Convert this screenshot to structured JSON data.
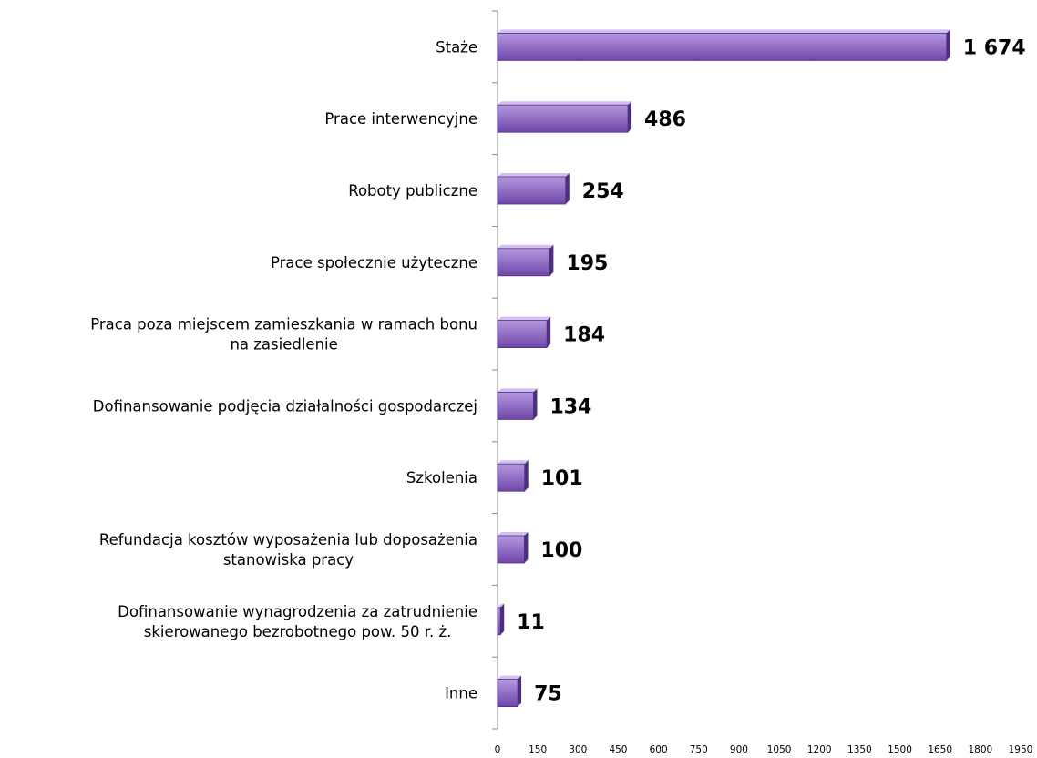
{
  "chart_data": {
    "type": "bar",
    "orientation": "horizontal",
    "categories": [
      "Staże",
      "Prace interwencyjne",
      "Roboty publiczne",
      "Prace społecznie użyteczne",
      "Praca poza miejscem zamieszkania w ramach bonu na zasiedlenie",
      "Dofinansowanie podjęcia działalności gospodarczej",
      "Szkolenia",
      "Refundacja kosztów wyposażenia lub doposażenia stanowiska pracy",
      "Dofinansowanie wynagrodzenia za zatrudnienie skierowanego bezrobotnego pow. 50 r. ż.",
      "Inne"
    ],
    "category_lines": [
      [
        "Staże"
      ],
      [
        "Prace interwencyjne"
      ],
      [
        "Roboty publiczne"
      ],
      [
        "Prace społecznie użyteczne"
      ],
      [
        "Praca poza miejscem zamieszkania w ramach bonu",
        "na zasiedlenie"
      ],
      [
        "Dofinansowanie podjęcia działalności gospodarczej"
      ],
      [
        "Szkolenia"
      ],
      [
        "Refundacja kosztów wyposażenia lub doposażenia",
        "stanowiska pracy"
      ],
      [
        "Dofinansowanie wynagrodzenia za zatrudnienie",
        "skierowanego bezrobotnego pow. 50 r. ż."
      ],
      [
        "Inne"
      ]
    ],
    "values": [
      1674,
      486,
      254,
      195,
      184,
      134,
      101,
      100,
      11,
      75
    ],
    "value_labels": [
      "1 674",
      "486",
      "254",
      "195",
      "184",
      "134",
      "101",
      "100",
      "11",
      "75"
    ],
    "xlim": [
      0,
      1950
    ],
    "xticks": [
      0,
      150,
      300,
      450,
      600,
      750,
      900,
      1050,
      1200,
      1350,
      1500,
      1650,
      1800,
      1950
    ],
    "title": "",
    "xlabel": "",
    "ylabel": "",
    "grid": false,
    "legend": "none",
    "colors": {
      "bar_front_light": "#b598e0",
      "bar_front_dark": "#6e46a8",
      "bar_top": "#d2bff0",
      "bar_side": "#4e2e82",
      "axis": "#8c8c8c"
    }
  }
}
